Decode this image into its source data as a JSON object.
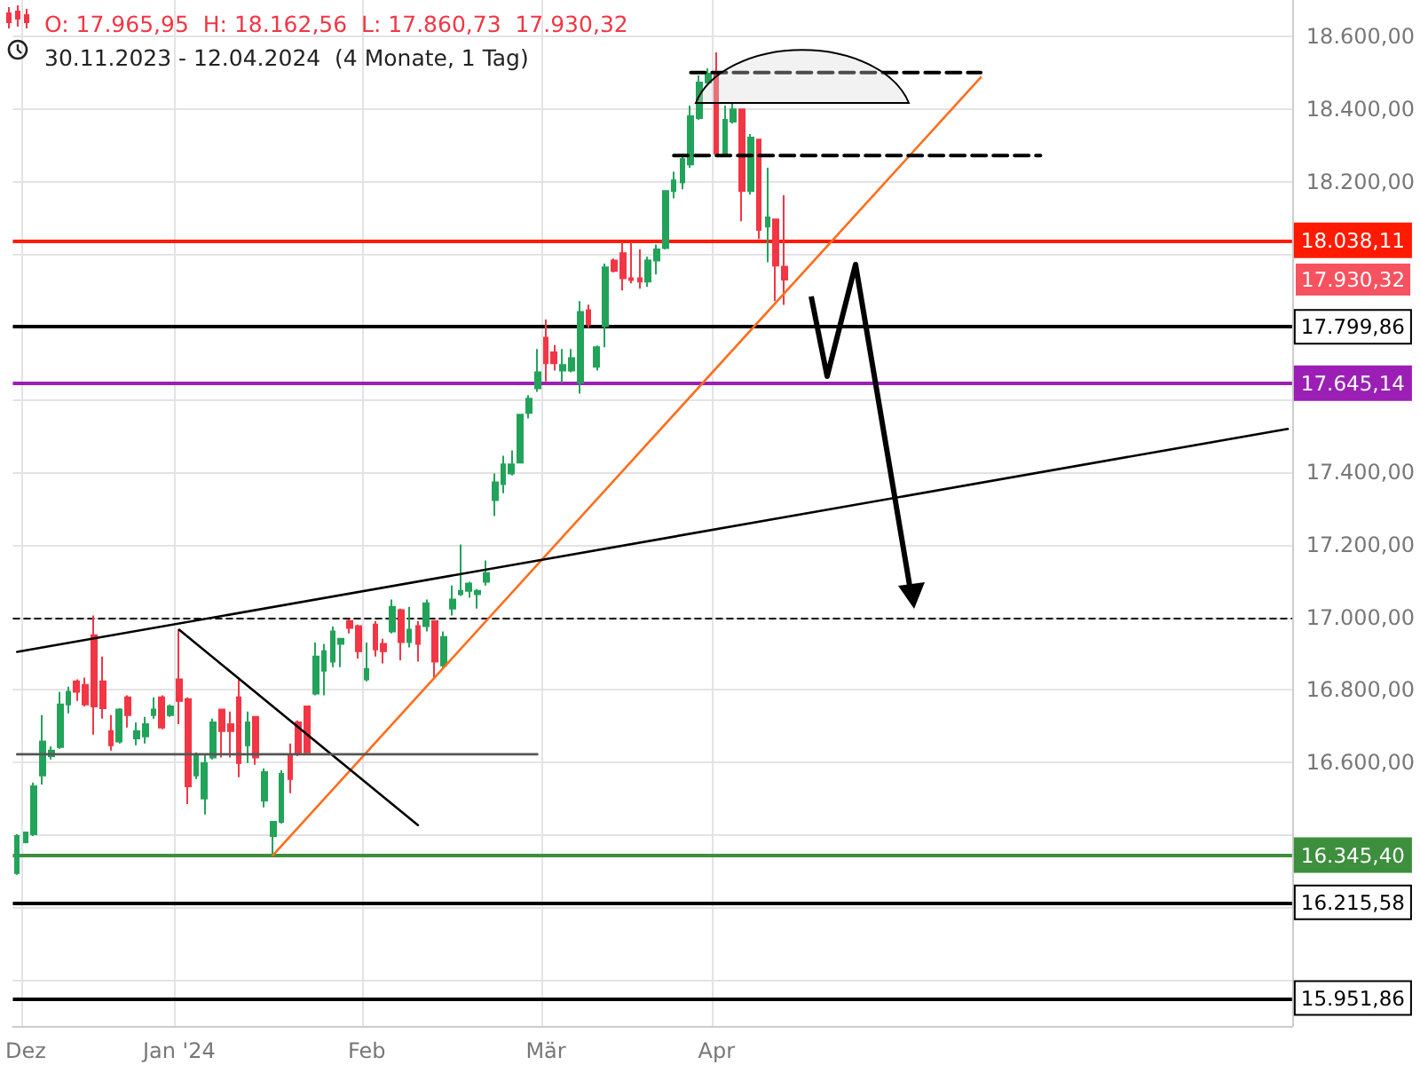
{
  "chart_data": {
    "type": "candlestick",
    "title": "O: 17.965,95  H: 18.162,56  L: 17.860,73  17.930,32",
    "subtitle": "30.11.2023 - 12.04.2024  (4 Monate, 1 Tag)",
    "categories": [
      null,
      "Dez",
      null,
      null,
      null,
      null,
      null,
      null,
      null,
      null,
      null,
      null,
      null,
      null,
      null,
      null,
      null,
      null,
      null,
      "Jan '24",
      null,
      null,
      null,
      null,
      null,
      null,
      null,
      null,
      null,
      null,
      null,
      null,
      null,
      null,
      null,
      null,
      null,
      null,
      null,
      null,
      null,
      "Feb",
      null,
      null,
      null,
      null,
      null,
      null,
      null,
      null,
      null,
      null,
      null,
      null,
      null,
      null,
      null,
      null,
      null,
      null,
      null,
      null,
      "Mär",
      null,
      null,
      null,
      null,
      null,
      null,
      null,
      null,
      null,
      null,
      null,
      null,
      null,
      null,
      null,
      null,
      null,
      null,
      null,
      "Apr",
      null,
      null,
      null,
      null,
      null,
      null,
      null,
      null,
      null,
      null,
      null,
      null,
      null,
      null,
      null,
      null,
      null,
      null,
      null,
      null,
      null,
      null,
      null,
      null,
      null,
      null,
      null,
      null,
      null,
      null,
      null,
      null,
      null,
      null,
      null,
      null,
      null,
      null,
      null,
      null,
      null,
      null,
      null,
      null,
      null,
      null,
      null,
      null,
      null,
      null,
      null,
      null,
      null,
      null,
      null,
      null,
      null,
      null,
      null,
      null,
      null,
      null,
      null,
      null,
      null,
      null,
      null
    ],
    "ohlc": [
      [
        16296,
        16403,
        16291,
        16398
      ],
      [
        16381,
        16410,
        16378,
        16408
      ],
      [
        16403,
        16545,
        16398,
        16535
      ],
      [
        16565,
        16731,
        16540,
        16658
      ],
      [
        16618,
        16645,
        16609,
        16633
      ],
      [
        16643,
        16795,
        16638,
        16760
      ],
      [
        16760,
        16809,
        16736,
        16795
      ],
      [
        16824,
        16829,
        16770,
        16795
      ],
      [
        16814,
        16834,
        16755,
        16760
      ],
      [
        16951,
        17005,
        16677,
        16755
      ],
      [
        16824,
        16892,
        16721,
        16750
      ],
      [
        16687,
        16731,
        16633,
        16648
      ],
      [
        16658,
        16750,
        16653,
        16746
      ],
      [
        16780,
        16785,
        16697,
        16731
      ],
      [
        16667,
        16711,
        16648,
        16687
      ],
      [
        16672,
        16726,
        16653,
        16706
      ],
      [
        16731,
        16780,
        16721,
        16746
      ],
      [
        16780,
        16785,
        16692,
        16697
      ],
      [
        16731,
        16760,
        16726,
        16755
      ],
      [
        16829,
        16966,
        16706,
        16770
      ],
      [
        16775,
        16780,
        16486,
        16535
      ],
      [
        16565,
        16628,
        16555,
        16618
      ],
      [
        16501,
        16623,
        16457,
        16599
      ],
      [
        16614,
        16721,
        16609,
        16711
      ],
      [
        16746,
        16746,
        16614,
        16687
      ],
      [
        16706,
        16741,
        16614,
        16687
      ],
      [
        16780,
        16829,
        16560,
        16599
      ],
      [
        16648,
        16741,
        16599,
        16711
      ],
      [
        16726,
        16726,
        16594,
        16614
      ],
      [
        16496,
        16584,
        16477,
        16574
      ],
      [
        16398,
        16437,
        16345,
        16437
      ],
      [
        16437,
        16579,
        16432,
        16569
      ],
      [
        16623,
        16653,
        16516,
        16555
      ],
      [
        16711,
        16716,
        16618,
        16623
      ],
      [
        16755,
        16755,
        16628,
        16628
      ],
      [
        16790,
        16931,
        16785,
        16892
      ],
      [
        16853,
        16927,
        16785,
        16907
      ],
      [
        16878,
        16975,
        16863,
        16961
      ],
      [
        16927,
        16941,
        16863,
        16941
      ],
      [
        16990,
        16995,
        16956,
        16971
      ],
      [
        16976,
        16980,
        16887,
        16907
      ],
      [
        16829,
        16931,
        16824,
        16858
      ],
      [
        16980,
        16990,
        16892,
        16912
      ],
      [
        16927,
        16941,
        16873,
        16907
      ],
      [
        16961,
        17049,
        16956,
        17029
      ],
      [
        17020,
        17024,
        16882,
        16932
      ],
      [
        16932,
        17029,
        16917,
        16966
      ],
      [
        16976,
        16990,
        16878,
        16927
      ],
      [
        16976,
        17049,
        16961,
        17039
      ],
      [
        16990,
        16990,
        16834,
        16878
      ],
      [
        16868,
        16961,
        16858,
        16946
      ],
      [
        17024,
        17088,
        17005,
        17049
      ],
      [
        17064,
        17201,
        17059,
        17073
      ],
      [
        17073,
        17098,
        17054,
        17093
      ],
      [
        17064,
        17078,
        17024,
        17073
      ],
      [
        17098,
        17157,
        17088,
        17122
      ],
      [
        17323,
        17396,
        17279,
        17372
      ],
      [
        17367,
        17445,
        17342,
        17421
      ],
      [
        17396,
        17460,
        17391,
        17421
      ],
      [
        17426,
        17558,
        17426,
        17558
      ],
      [
        17563,
        17612,
        17548,
        17602
      ],
      [
        17631,
        17739,
        17621,
        17675
      ],
      [
        17770,
        17820,
        17650,
        17700
      ],
      [
        17730,
        17750,
        17680,
        17700
      ],
      [
        17680,
        17739,
        17646,
        17695
      ],
      [
        17680,
        17739,
        17675,
        17714
      ],
      [
        17646,
        17871,
        17616,
        17841
      ],
      [
        17846,
        17861,
        17797,
        17807
      ],
      [
        17690,
        17749,
        17680,
        17744
      ],
      [
        17802,
        17974,
        17744,
        17964
      ],
      [
        17983,
        17988,
        17950,
        17954
      ],
      [
        18003,
        18032,
        17900,
        17934
      ],
      [
        17934,
        18032,
        17920,
        17929
      ],
      [
        17934,
        18013,
        17905,
        17925
      ],
      [
        17925,
        17993,
        17910,
        17983
      ],
      [
        17983,
        18027,
        17944,
        18013
      ],
      [
        18017,
        18174,
        18013,
        18174
      ],
      [
        18174,
        18227,
        18154,
        18203
      ],
      [
        18198,
        18277,
        18179,
        18262
      ],
      [
        18247,
        18409,
        18238,
        18380
      ],
      [
        18375,
        18492,
        18370,
        18473
      ],
      [
        18473,
        18512,
        18468,
        18497
      ],
      [
        18492,
        18556,
        18277,
        18277
      ],
      [
        18277,
        18409,
        18272,
        18370
      ],
      [
        18365,
        18419,
        18360,
        18399
      ],
      [
        18399,
        18399,
        18091,
        18174
      ],
      [
        18174,
        18331,
        18164,
        18321
      ],
      [
        18316,
        18316,
        18042,
        18067
      ],
      [
        18076,
        18238,
        17978,
        18101
      ],
      [
        18096,
        18096,
        17871,
        17969
      ],
      [
        17965.95,
        18162.56,
        17860.73,
        17930.32
      ],
      null,
      null,
      null,
      null,
      null,
      null,
      null,
      null,
      null,
      null,
      null,
      null,
      null,
      null,
      null,
      null,
      null,
      null,
      null,
      null,
      null,
      null,
      null,
      null,
      null,
      null,
      null,
      null,
      null,
      null,
      null,
      null,
      null,
      null,
      null,
      null,
      null,
      null,
      null,
      null,
      null,
      null,
      null,
      null,
      null,
      null,
      null,
      null,
      null,
      null,
      null,
      null,
      null,
      null,
      null,
      null,
      null,
      null,
      null
    ],
    "series": [
      {
        "type": "line",
        "color": "#ff6d1a",
        "values": [
          null,
          null,
          null,
          null,
          null,
          null,
          null,
          null,
          null,
          null,
          null,
          null,
          null,
          null,
          null,
          null,
          null,
          null,
          null,
          null,
          null,
          null,
          null,
          null,
          null,
          null,
          null,
          null,
          null,
          null,
          16345,
          null,
          null,
          null,
          null,
          null,
          null,
          null,
          null,
          null,
          null,
          null,
          null,
          null,
          null,
          null,
          null,
          null,
          null,
          null,
          null,
          null,
          null,
          null,
          null,
          null,
          null,
          null,
          null,
          null,
          null,
          null,
          null,
          null,
          null,
          null,
          null,
          null,
          null,
          null,
          null,
          null,
          null,
          null,
          null,
          null,
          null,
          null,
          null,
          null,
          null,
          null,
          null,
          null,
          null,
          null,
          null,
          null,
          null,
          null,
          null,
          null,
          null,
          null,
          null,
          null,
          null,
          null,
          null,
          null,
          null,
          null,
          null,
          null,
          null,
          null,
          null,
          null,
          null,
          null,
          null,
          null,
          null,
          18487,
          null,
          null,
          null,
          null,
          null,
          null,
          null,
          null,
          null,
          null,
          null,
          null,
          null,
          null,
          null,
          null,
          null,
          null,
          null,
          null,
          null,
          null,
          null,
          null,
          null,
          null,
          null,
          null,
          null,
          null,
          null,
          null,
          null,
          null,
          null,
          null
        ]
      },
      {
        "type": "line",
        "color": "#000000",
        "values": [
          16905,
          null,
          null,
          null,
          null,
          null,
          null,
          null,
          null,
          null,
          null,
          null,
          null,
          null,
          null,
          null,
          null,
          null,
          null,
          null,
          null,
          null,
          null,
          null,
          null,
          null,
          null,
          null,
          null,
          null,
          null,
          null,
          null,
          null,
          null,
          null,
          null,
          null,
          null,
          null,
          null,
          null,
          null,
          null,
          null,
          null,
          null,
          null,
          null,
          null,
          null,
          null,
          null,
          null,
          null,
          null,
          null,
          null,
          null,
          null,
          null,
          null,
          null,
          null,
          null,
          null,
          null,
          null,
          null,
          null,
          null,
          null,
          null,
          null,
          null,
          null,
          null,
          null,
          null,
          null,
          null,
          null,
          null,
          null,
          null,
          null,
          null,
          null,
          null,
          null,
          null,
          null,
          null,
          null,
          null,
          null,
          null,
          null,
          null,
          null,
          null,
          null,
          null,
          null,
          null,
          null,
          null,
          null,
          null,
          null,
          null,
          null,
          null,
          null,
          null,
          null,
          null,
          null,
          null,
          null,
          null,
          null,
          null,
          null,
          null,
          null,
          null,
          null,
          null,
          null,
          null,
          null,
          null,
          null,
          null,
          null,
          null,
          null,
          null,
          null,
          null,
          null,
          null,
          null,
          null,
          null,
          null,
          null,
          null,
          17519
        ]
      },
      {
        "type": "line",
        "color": "#000000",
        "values": [
          null,
          null,
          null,
          null,
          null,
          null,
          null,
          null,
          null,
          null,
          null,
          null,
          null,
          null,
          null,
          null,
          null,
          null,
          null,
          16966,
          null,
          null,
          null,
          null,
          null,
          null,
          null,
          null,
          null,
          null,
          null,
          null,
          null,
          null,
          null,
          null,
          null,
          null,
          null,
          null,
          null,
          null,
          null,
          null,
          null,
          null,
          null,
          16428,
          null,
          null,
          null,
          null,
          null,
          null,
          null,
          null,
          null,
          null,
          null,
          null,
          null,
          null,
          null,
          null,
          null,
          null,
          null,
          null,
          null,
          null,
          null,
          null,
          null,
          null,
          null,
          null,
          null,
          null,
          null,
          null,
          null,
          null,
          null,
          null,
          null,
          null,
          null,
          null,
          null,
          null,
          null,
          null,
          null,
          null,
          null,
          null,
          null,
          null,
          null,
          null,
          null,
          null,
          null,
          null,
          null,
          null,
          null,
          null,
          null,
          null,
          null,
          null,
          null,
          null,
          null,
          null,
          null,
          null,
          null,
          null,
          null,
          null,
          null,
          null,
          null,
          null,
          null,
          null,
          null,
          null,
          null,
          null,
          null,
          null,
          null,
          null,
          null,
          null,
          null,
          null,
          null,
          null,
          null,
          null,
          null,
          null,
          null,
          null,
          null,
          null
        ]
      },
      {
        "type": "line",
        "color": "#555555",
        "values": [
          16623,
          null,
          null,
          null,
          null,
          null,
          null,
          null,
          null,
          null,
          null,
          null,
          null,
          null,
          null,
          null,
          null,
          null,
          null,
          null,
          null,
          null,
          null,
          null,
          null,
          null,
          null,
          null,
          null,
          null,
          null,
          null,
          null,
          null,
          null,
          null,
          null,
          null,
          null,
          null,
          null,
          null,
          null,
          null,
          null,
          null,
          null,
          null,
          null,
          null,
          null,
          null,
          null,
          null,
          null,
          null,
          null,
          null,
          null,
          null,
          null,
          16623,
          null,
          null,
          null,
          null,
          null,
          null,
          null,
          null,
          null,
          null,
          null,
          null,
          null,
          null,
          null,
          null,
          null,
          null,
          null,
          null,
          null,
          null,
          null,
          null,
          null,
          null,
          null,
          null,
          null,
          null,
          null,
          null,
          null,
          null,
          null,
          null,
          null,
          null,
          null,
          null,
          null,
          null,
          null,
          null,
          null,
          null,
          null,
          null,
          null,
          null,
          null,
          null,
          null,
          null,
          null,
          null,
          null,
          null,
          null,
          null,
          null,
          null,
          null,
          null,
          null,
          null,
          null,
          null,
          null,
          null,
          null,
          null,
          null,
          null,
          null,
          null,
          null,
          null,
          null,
          null,
          null,
          null,
          null,
          null,
          null,
          null,
          null,
          null
        ]
      },
      {
        "type": "line",
        "color": "#000000",
        "line_style": "dashed",
        "values": [
          null,
          null,
          null,
          null,
          null,
          null,
          null,
          null,
          null,
          null,
          null,
          null,
          null,
          null,
          null,
          null,
          null,
          null,
          null,
          null,
          null,
          null,
          null,
          null,
          null,
          null,
          null,
          null,
          null,
          null,
          null,
          null,
          null,
          null,
          null,
          null,
          null,
          null,
          null,
          null,
          null,
          null,
          null,
          null,
          null,
          null,
          null,
          null,
          null,
          null,
          null,
          null,
          null,
          null,
          null,
          null,
          null,
          null,
          null,
          null,
          null,
          null,
          null,
          null,
          null,
          null,
          null,
          null,
          null,
          null,
          null,
          null,
          null,
          null,
          null,
          null,
          null,
          18272,
          null,
          null,
          null,
          null,
          null,
          null,
          null,
          null,
          null,
          null,
          null,
          null,
          null,
          null,
          null,
          null,
          null,
          null,
          null,
          null,
          null,
          null,
          null,
          null,
          null,
          null,
          null,
          null,
          null,
          null,
          null,
          null,
          null,
          null,
          null,
          null,
          null,
          null,
          null,
          null,
          null,
          null,
          18272,
          null,
          null,
          null,
          null,
          null,
          null,
          null,
          null,
          null,
          null,
          null,
          null,
          null,
          null,
          null,
          null,
          null,
          null,
          null,
          null,
          null,
          null,
          null,
          null,
          null,
          null,
          null,
          null,
          null
        ]
      },
      {
        "type": "line",
        "color": "#000000",
        "line_style": "dashed",
        "values": [
          null,
          null,
          null,
          null,
          null,
          null,
          null,
          null,
          null,
          null,
          null,
          null,
          null,
          null,
          null,
          null,
          null,
          null,
          null,
          null,
          null,
          null,
          null,
          null,
          null,
          null,
          null,
          null,
          null,
          null,
          null,
          null,
          null,
          null,
          null,
          null,
          null,
          null,
          null,
          null,
          null,
          null,
          null,
          null,
          null,
          null,
          null,
          null,
          null,
          null,
          null,
          null,
          null,
          null,
          null,
          null,
          null,
          null,
          null,
          null,
          null,
          null,
          null,
          null,
          null,
          null,
          null,
          null,
          null,
          null,
          null,
          null,
          null,
          null,
          null,
          null,
          null,
          null,
          null,
          18500,
          null,
          null,
          null,
          null,
          null,
          null,
          null,
          null,
          null,
          null,
          null,
          null,
          null,
          null,
          null,
          null,
          null,
          null,
          null,
          null,
          null,
          null,
          null,
          null,
          null,
          null,
          null,
          null,
          null,
          null,
          null,
          null,
          null,
          18500,
          null,
          null,
          null,
          null,
          null,
          null,
          null,
          null,
          null,
          null,
          null,
          null,
          null,
          null,
          null,
          null,
          null,
          null,
          null,
          null,
          null,
          null,
          null,
          null,
          null,
          null,
          null,
          null,
          null,
          null,
          null,
          null,
          null,
          null,
          null,
          null
        ]
      }
    ],
    "ylim": [
      15875,
      18700
    ],
    "yticks": [
      {
        "value": 16000,
        "label": null
      },
      {
        "value": 16200,
        "label": null
      },
      {
        "value": 16400,
        "label": null
      },
      {
        "value": 16600,
        "label": "16.600,00"
      },
      {
        "value": 16800,
        "label": "16.800,00"
      },
      {
        "value": 17000,
        "label": "17.000,00"
      },
      {
        "value": 17200,
        "label": "17.200,00"
      },
      {
        "value": 17400,
        "label": "17.400,00"
      },
      {
        "value": 17600,
        "label": null
      },
      {
        "value": 17800,
        "label": null
      },
      {
        "value": 18000,
        "label": null
      },
      {
        "value": 18200,
        "label": "18.200,00"
      },
      {
        "value": 18400,
        "label": "18.400,00"
      },
      {
        "value": 18600,
        "label": "18.600,00"
      }
    ],
    "ref_lines": [
      {
        "axis": "y",
        "value": 18038.11,
        "label": "18.038,11",
        "color": "#ff1a00"
      },
      {
        "axis": "y",
        "value": 17799.86,
        "label": "17.799,86",
        "color": "#000000"
      },
      {
        "axis": "y",
        "value": 17645.14,
        "label": "17.645,14",
        "color": "#9c1fb5"
      },
      {
        "axis": "y",
        "value": 17000,
        "label": null,
        "color": "#000000",
        "line_style": "dashed"
      },
      {
        "axis": "y",
        "value": 16345.4,
        "label": "16.345,40",
        "color": "#3d8f3d"
      },
      {
        "axis": "y",
        "value": 16215.58,
        "label": "16.215,58",
        "color": "#000000"
      },
      {
        "axis": "y",
        "value": 15951.86,
        "label": "15.951,86",
        "color": "#000000"
      }
    ],
    "annotations": [
      "17.930,32"
    ],
    "grid": true,
    "marker": "none"
  }
}
